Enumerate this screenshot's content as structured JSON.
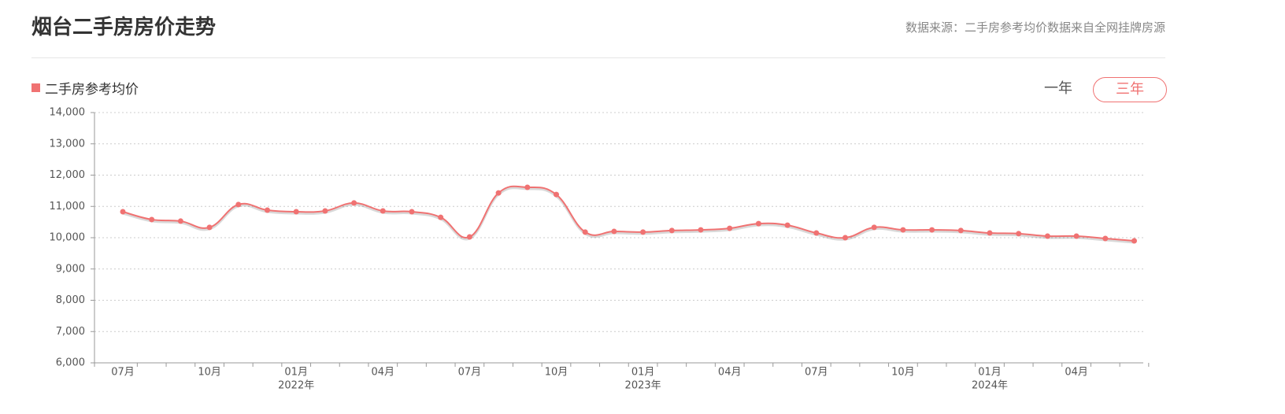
{
  "header": {
    "title": "烟台二手房房价走势",
    "source": "数据来源：二手房参考均价数据来自全网挂牌房源"
  },
  "range_buttons": [
    "一年",
    "三年"
  ],
  "active_button": 1,
  "chart_data": {
    "type": "line",
    "categories": [
      "07月",
      null,
      null,
      "10月",
      null,
      null,
      "01月",
      null,
      null,
      "04月",
      null,
      null,
      "07月",
      null,
      null,
      "10月",
      null,
      null,
      "01月",
      null,
      null,
      "04月",
      null,
      null,
      "07月",
      null,
      null,
      "10月",
      null,
      null,
      "01月",
      null,
      null,
      "04月",
      null,
      null
    ],
    "category_years": [
      null,
      null,
      null,
      null,
      null,
      null,
      "2022年",
      null,
      null,
      null,
      null,
      null,
      null,
      null,
      null,
      null,
      null,
      null,
      "2023年",
      null,
      null,
      null,
      null,
      null,
      null,
      null,
      null,
      null,
      null,
      null,
      "2024年",
      null,
      null,
      null,
      null,
      null
    ],
    "series": [
      {
        "name": "二手房参考均价",
        "color": "#f07272",
        "values": [
          10830,
          10580,
          10530,
          10330,
          11060,
          10880,
          10830,
          10855,
          11110,
          10855,
          10830,
          10650,
          10025,
          11430,
          11610,
          11380,
          10180,
          10200,
          10180,
          10230,
          10250,
          10300,
          10450,
          10400,
          10150,
          10000,
          10330,
          10250,
          10250,
          10230,
          10150,
          10130,
          10050,
          10050,
          9975,
          9900
        ]
      }
    ],
    "ylim": [
      6000,
      14000
    ],
    "yticks": [
      {
        "value": 6000,
        "label": "6,000"
      },
      {
        "value": 7000,
        "label": "7,000"
      },
      {
        "value": 8000,
        "label": "8,000"
      },
      {
        "value": 9000,
        "label": "9,000"
      },
      {
        "value": 10000,
        "label": "10,000"
      },
      {
        "value": 11000,
        "label": "11,000"
      },
      {
        "value": 12000,
        "label": "12,000"
      },
      {
        "value": 13000,
        "label": "13,000"
      },
      {
        "value": 14000,
        "label": "14,000"
      }
    ],
    "grid": true
  }
}
